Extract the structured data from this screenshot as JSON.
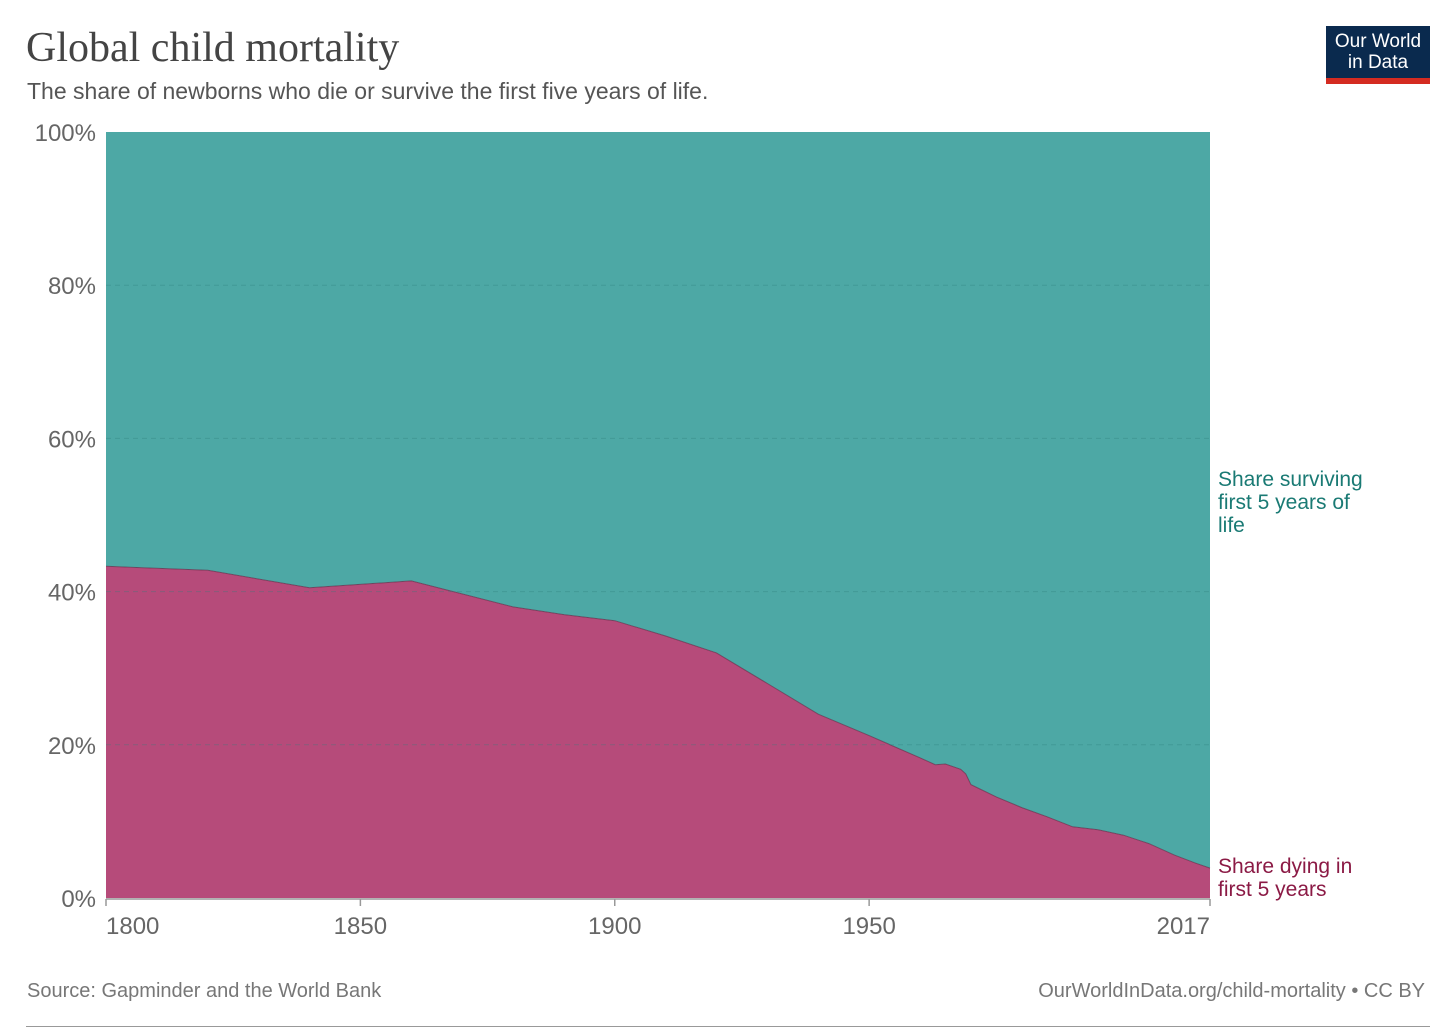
{
  "header": {
    "title": "Global child mortality",
    "subtitle": "The share of newborns who die or survive the first five years of life."
  },
  "logo": {
    "line1": "Our World",
    "line2": "in Data"
  },
  "footer": {
    "source": "Source: Gapminder and the World Bank",
    "url": "OurWorldInData.org/child-mortality • CC BY"
  },
  "colors": {
    "dying": "#b64b7a",
    "surviving": "#4da8a5",
    "dying_label": "#8b1a45",
    "surviving_label": "#1a7a74"
  },
  "chart_data": {
    "type": "area",
    "stacked": true,
    "xlim": [
      1800,
      2017
    ],
    "ylim": [
      0,
      100
    ],
    "x_ticks": [
      "1800",
      "1850",
      "1900",
      "1950",
      "2017"
    ],
    "y_ticks": [
      "0%",
      "20%",
      "40%",
      "60%",
      "80%",
      "100%"
    ],
    "grid": true,
    "series": [
      {
        "name": "Share dying in first 5 years",
        "points": [
          [
            1800,
            43.3
          ],
          [
            1820,
            42.8
          ],
          [
            1840,
            40.5
          ],
          [
            1860,
            41.4
          ],
          [
            1880,
            38.0
          ],
          [
            1890,
            37.0
          ],
          [
            1900,
            36.2
          ],
          [
            1910,
            34.2
          ],
          [
            1920,
            32.0
          ],
          [
            1930,
            28.0
          ],
          [
            1940,
            24.0
          ],
          [
            1950,
            21.2
          ],
          [
            1960,
            18.3
          ],
          [
            1963,
            17.4
          ],
          [
            1965,
            17.5
          ],
          [
            1968,
            16.8
          ],
          [
            1969,
            16.2
          ],
          [
            1970,
            14.8
          ],
          [
            1975,
            13.2
          ],
          [
            1980,
            11.8
          ],
          [
            1985,
            10.6
          ],
          [
            1990,
            9.3
          ],
          [
            1995,
            8.9
          ],
          [
            2000,
            8.2
          ],
          [
            2005,
            7.1
          ],
          [
            2010,
            5.6
          ],
          [
            2014,
            4.6
          ],
          [
            2017,
            3.9
          ]
        ]
      },
      {
        "name": "Share surviving first 5 years of life",
        "fill_to": 100
      }
    ],
    "labels": {
      "surviving": [
        "Share surviving",
        "first 5 years of",
        "life"
      ],
      "dying": [
        "Share dying in",
        "first 5 years"
      ]
    }
  }
}
